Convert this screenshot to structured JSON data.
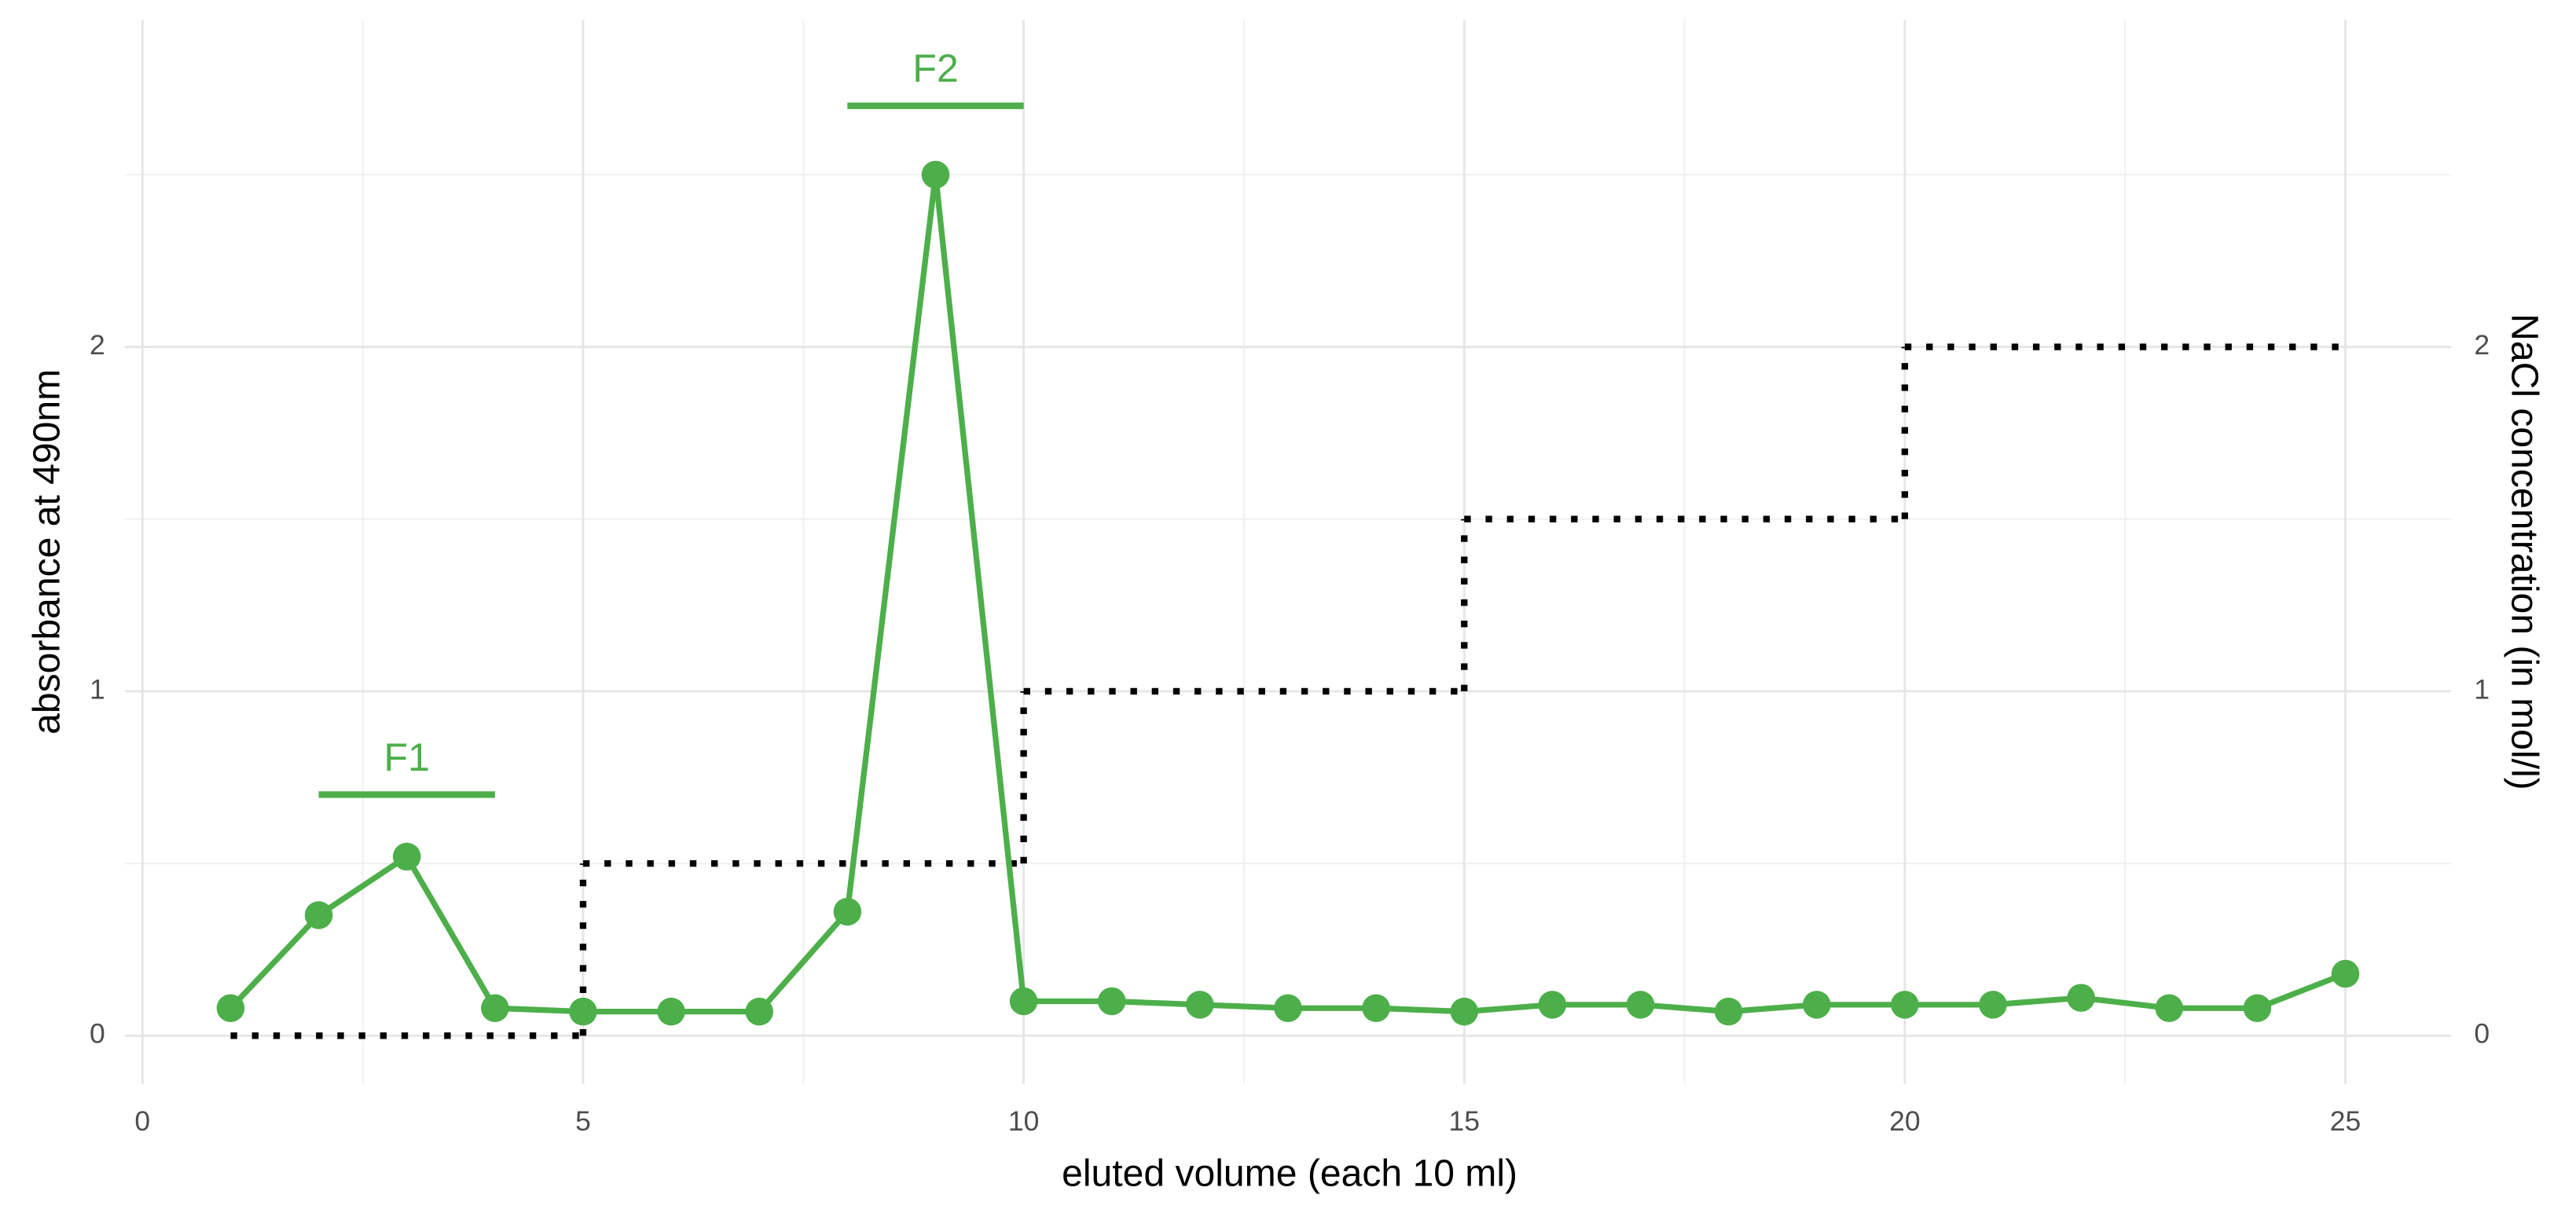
{
  "chart_data": {
    "type": "line",
    "x_label": "eluted volume (each 10 ml)",
    "y_label": "absorbance at 490nm",
    "y2_label": "NaCl concentration (in mol/l)",
    "x": [
      1,
      2,
      3,
      4,
      5,
      6,
      7,
      8,
      9,
      10,
      11,
      12,
      13,
      14,
      15,
      16,
      17,
      18,
      19,
      20,
      21,
      22,
      23,
      24,
      25
    ],
    "series": [
      {
        "color": "#4daf4a",
        "values": [
          0.08,
          0.35,
          0.52,
          0.08,
          0.07,
          0.07,
          0.07,
          0.36,
          2.5,
          0.1,
          0.1,
          0.09,
          0.08,
          0.08,
          0.07,
          0.09,
          0.09,
          0.07,
          0.09,
          0.09,
          0.09,
          0.11,
          0.08,
          0.08,
          0.18
        ]
      },
      {
        "color": "#000000",
        "axis": "y2",
        "style": "step-dotted",
        "x": [
          1,
          5,
          10,
          15,
          20,
          25
        ],
        "values": [
          0,
          0.5,
          1,
          1.5,
          2,
          2
        ]
      }
    ],
    "annotations": [
      {
        "text": "F1",
        "color": "#4daf4a",
        "x": [
          2,
          4
        ],
        "y": 0.7,
        "text_y": 0.8
      },
      {
        "text": "F2",
        "color": "#4daf4a",
        "x": [
          8,
          10
        ],
        "y": 2.7,
        "text_y": 2.8
      }
    ],
    "xlim": [
      -0.2,
      26.2
    ],
    "xticks": [
      0,
      5,
      10,
      15,
      20,
      25
    ],
    "x_minor_grid": [
      2.5,
      7.5,
      12.5,
      17.5,
      22.5
    ],
    "ylim": [
      -0.14,
      2.95
    ],
    "yticks": [
      0,
      1,
      2
    ],
    "y_minor_grid": [
      0.5,
      1.5,
      2.5
    ],
    "y2lim": [
      -0.14,
      2.95
    ],
    "y2ticks": [
      0,
      1,
      2
    ],
    "grid": true
  }
}
